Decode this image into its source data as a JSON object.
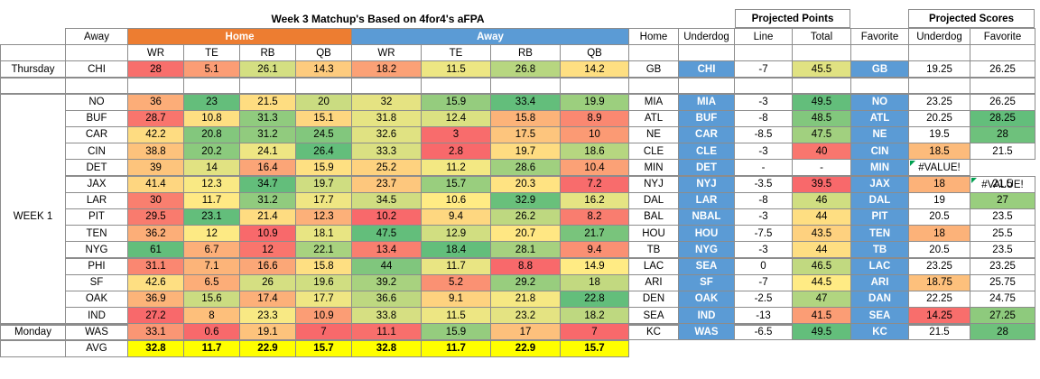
{
  "title": "Week 3 Matchup's Based on 4for4's aFPA",
  "headers": {
    "away": "Away",
    "home_group": "Home",
    "away_group": "Away",
    "home": "Home",
    "underdog": "Underdog",
    "line": "Line",
    "total": "Total",
    "favorite": "Favorite",
    "underdog_score": "Underdog",
    "favorite_score": "Favorite",
    "projected_points": "Projected Points",
    "projected_scores": "Projected Scores",
    "positions": [
      "WR",
      "TE",
      "RB",
      "QB"
    ]
  },
  "row_labels": {
    "thursday": "Thursday",
    "week": "WEEK 1",
    "monday": "Monday",
    "avg": "AVG"
  },
  "colors": {
    "home_header": "#ed7d31",
    "away_header": "#5b9bd5",
    "team_badge": "#5b9bd5",
    "avg_fill": "#ffff00",
    "heat_low": "#f8696b",
    "heat_mid": "#ffeb84",
    "heat_high": "#63be7b"
  },
  "rows": [
    {
      "team": "CHI",
      "home_fpa": [
        "28",
        "5.1",
        "26.1",
        "14.3"
      ],
      "away_fpa": [
        "18.2",
        "11.5",
        "26.8",
        "14.2"
      ],
      "home": "GB",
      "underdog": "CHI",
      "line": "-7",
      "total": "45.5",
      "favorite": "GB",
      "und_score": "19.25",
      "fav_score": "26.25"
    },
    {
      "team": "NO",
      "home_fpa": [
        "36",
        "23",
        "21.5",
        "20"
      ],
      "away_fpa": [
        "32",
        "15.9",
        "33.4",
        "19.9"
      ],
      "home": "MIA",
      "underdog": "MIA",
      "line": "-3",
      "total": "49.5",
      "favorite": "NO",
      "und_score": "23.25",
      "fav_score": "26.25"
    },
    {
      "team": "BUF",
      "home_fpa": [
        "28.7",
        "10.8",
        "31.3",
        "15.1"
      ],
      "away_fpa": [
        "31.8",
        "12.4",
        "15.8",
        "8.9"
      ],
      "home": "ATL",
      "underdog": "BUF",
      "line": "-8",
      "total": "48.5",
      "favorite": "ATL",
      "und_score": "20.25",
      "fav_score": "28.25"
    },
    {
      "team": "CAR",
      "home_fpa": [
        "42.2",
        "20.8",
        "31.2",
        "24.5"
      ],
      "away_fpa": [
        "32.6",
        "3",
        "17.5",
        "10"
      ],
      "home": "NE",
      "underdog": "CAR",
      "line": "-8.5",
      "total": "47.5",
      "favorite": "NE",
      "und_score": "19.5",
      "fav_score": "28"
    },
    {
      "team": "CIN",
      "home_fpa": [
        "38.8",
        "20.2",
        "24.1",
        "26.4"
      ],
      "away_fpa": [
        "33.3",
        "2.8",
        "19.7",
        "18.6"
      ],
      "home": "CLE",
      "underdog": "CLE",
      "line": "-3",
      "total": "40",
      "favorite": "CIN",
      "und_score": "18.5",
      "fav_score": "21.5"
    },
    {
      "team": "DET",
      "home_fpa": [
        "39",
        "14",
        "16.4",
        "15.9"
      ],
      "away_fpa": [
        "25.2",
        "11.2",
        "28.6",
        "10.4"
      ],
      "home": "MIN",
      "underdog": "DET",
      "line": "-",
      "total": "-",
      "favorite": "MIN",
      "und_score": "#VALUE!",
      "fav_score": "#VALUE!"
    },
    {
      "team": "JAX",
      "home_fpa": [
        "41.4",
        "12.3",
        "34.7",
        "19.7"
      ],
      "away_fpa": [
        "23.7",
        "15.7",
        "20.3",
        "7.2"
      ],
      "home": "NYJ",
      "underdog": "NYJ",
      "line": "-3.5",
      "total": "39.5",
      "favorite": "JAX",
      "und_score": "18",
      "fav_score": "21.5"
    },
    {
      "team": "LAR",
      "home_fpa": [
        "30",
        "11.7",
        "31.2",
        "17.7"
      ],
      "away_fpa": [
        "34.5",
        "10.6",
        "32.9",
        "16.2"
      ],
      "home": "DAL",
      "underdog": "LAR",
      "line": "-8",
      "total": "46",
      "favorite": "DAL",
      "und_score": "19",
      "fav_score": "27"
    },
    {
      "team": "PIT",
      "home_fpa": [
        "29.5",
        "23.1",
        "21.4",
        "12.3"
      ],
      "away_fpa": [
        "10.2",
        "9.4",
        "26.2",
        "8.2"
      ],
      "home": "BAL",
      "underdog": "NBAL",
      "line": "-3",
      "total": "44",
      "favorite": "PIT",
      "und_score": "20.5",
      "fav_score": "23.5"
    },
    {
      "team": "TEN",
      "home_fpa": [
        "36.2",
        "12",
        "10.9",
        "18.1"
      ],
      "away_fpa": [
        "47.5",
        "12.9",
        "20.7",
        "21.7"
      ],
      "home": "HOU",
      "underdog": "HOU",
      "line": "-7.5",
      "total": "43.5",
      "favorite": "TEN",
      "und_score": "18",
      "fav_score": "25.5"
    },
    {
      "team": "NYG",
      "home_fpa": [
        "61",
        "6.7",
        "12",
        "22.1"
      ],
      "away_fpa": [
        "13.4",
        "18.4",
        "28.1",
        "9.4"
      ],
      "home": "TB",
      "underdog": "NYG",
      "line": "-3",
      "total": "44",
      "favorite": "TB",
      "und_score": "20.5",
      "fav_score": "23.5"
    },
    {
      "team": "PHI",
      "home_fpa": [
        "31.1",
        "7.1",
        "16.6",
        "15.8"
      ],
      "away_fpa": [
        "44",
        "11.7",
        "8.8",
        "14.9"
      ],
      "home": "LAC",
      "underdog": "SEA",
      "line": "0",
      "total": "46.5",
      "favorite": "LAC",
      "und_score": "23.25",
      "fav_score": "23.25"
    },
    {
      "team": "SF",
      "home_fpa": [
        "42.6",
        "6.5",
        "26",
        "19.6"
      ],
      "away_fpa": [
        "39.2",
        "5.2",
        "29.2",
        "18"
      ],
      "home": "ARI",
      "underdog": "SF",
      "line": "-7",
      "total": "44.5",
      "favorite": "ARI",
      "und_score": "18.75",
      "fav_score": "25.75"
    },
    {
      "team": "OAK",
      "home_fpa": [
        "36.9",
        "15.6",
        "17.4",
        "17.7"
      ],
      "away_fpa": [
        "36.6",
        "9.1",
        "21.8",
        "22.8"
      ],
      "home": "DEN",
      "underdog": "OAK",
      "line": "-2.5",
      "total": "47",
      "favorite": "DAN",
      "und_score": "22.25",
      "fav_score": "24.75"
    },
    {
      "team": "IND",
      "home_fpa": [
        "27.2",
        "8",
        "23.3",
        "10.9"
      ],
      "away_fpa": [
        "33.8",
        "11.5",
        "23.2",
        "18.2"
      ],
      "home": "SEA",
      "underdog": "IND",
      "line": "-13",
      "total": "41.5",
      "favorite": "SEA",
      "und_score": "14.25",
      "fav_score": "27.25"
    },
    {
      "team": "WAS",
      "home_fpa": [
        "33.1",
        "0.6",
        "19.1",
        "7"
      ],
      "away_fpa": [
        "11.1",
        "15.9",
        "17",
        "7"
      ],
      "home": "KC",
      "underdog": "WAS",
      "line": "-6.5",
      "total": "49.5",
      "favorite": "KC",
      "und_score": "21.5",
      "fav_score": "28"
    }
  ],
  "avg": {
    "home_fpa": [
      "32.8",
      "11.7",
      "22.9",
      "15.7"
    ],
    "away_fpa": [
      "32.8",
      "11.7",
      "22.9",
      "15.7"
    ]
  }
}
